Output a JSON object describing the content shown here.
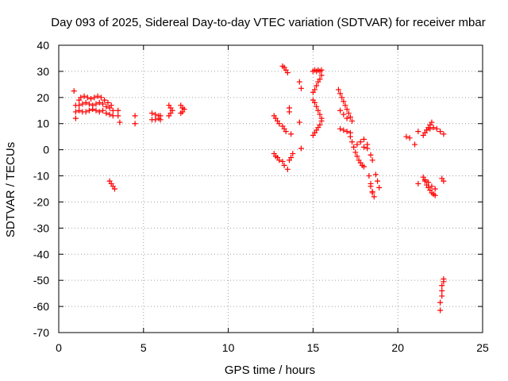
{
  "chart_data": {
    "type": "scatter",
    "title": "Day 093 of 2025, Sidereal Day-to-day VTEC variation (SDTVAR) for receiver mbar",
    "xlabel": "GPS time / hours",
    "ylabel": "SDTVAR / TECUs",
    "xlim": [
      0,
      25
    ],
    "ylim": [
      -70,
      40
    ],
    "xticks": [
      0,
      5,
      10,
      15,
      20,
      25
    ],
    "yticks": [
      -70,
      -60,
      -50,
      -40,
      -30,
      -20,
      -10,
      0,
      10,
      20,
      30,
      40
    ],
    "grid": true,
    "marker": "+",
    "color": "#ff0000",
    "series": [
      {
        "name": "",
        "segments": [
          {
            "x": [
              0.9,
              1.0,
              1.0,
              1.0
            ],
            "y": [
              22.5,
              17.0,
              14.5,
              12.0
            ]
          },
          {
            "x": [
              1.2,
              1.3,
              1.5,
              1.7,
              1.9,
              2.1,
              2.3,
              2.5,
              2.7,
              2.9,
              3.1
            ],
            "y": [
              19.0,
              20.0,
              20.5,
              20.0,
              19.5,
              20.0,
              20.5,
              20.0,
              19.0,
              18.0,
              17.0
            ]
          },
          {
            "x": [
              1.2,
              1.4,
              1.6,
              1.8,
              2.0,
              2.2,
              2.4,
              2.6,
              2.8,
              3.0,
              3.2
            ],
            "y": [
              17.0,
              17.5,
              18.0,
              17.5,
              17.0,
              17.5,
              18.0,
              17.5,
              16.5,
              16.0,
              15.0
            ]
          },
          {
            "x": [
              1.2,
              1.4,
              1.6,
              1.8,
              2.0,
              2.2,
              2.4,
              2.6,
              2.8,
              3.0,
              3.2
            ],
            "y": [
              15.0,
              14.5,
              14.5,
              15.0,
              15.5,
              15.0,
              14.5,
              15.0,
              14.0,
              13.5,
              13.0
            ]
          },
          {
            "x": [
              3.5,
              3.5,
              3.6
            ],
            "y": [
              15.0,
              13.0,
              10.5
            ]
          },
          {
            "x": [
              3.0,
              3.1,
              3.2,
              3.3
            ],
            "y": [
              -12.0,
              -13.0,
              -14.0,
              -15.0
            ]
          },
          {
            "x": [
              4.5,
              4.5
            ],
            "y": [
              13.0,
              10.0
            ]
          },
          {
            "x": [
              5.5,
              5.7,
              5.9,
              6.0,
              5.5,
              5.7,
              5.9,
              6.0
            ],
            "y": [
              14.0,
              13.5,
              13.0,
              13.0,
              11.5,
              11.5,
              12.0,
              11.5
            ]
          },
          {
            "x": [
              6.5,
              6.6,
              6.7,
              6.6,
              6.5
            ],
            "y": [
              17.0,
              16.0,
              15.0,
              14.0,
              13.0
            ]
          },
          {
            "x": [
              7.2,
              7.3,
              7.4,
              7.3,
              7.2
            ],
            "y": [
              17.0,
              16.0,
              15.5,
              14.5,
              14.0
            ]
          },
          {
            "x": [
              12.7,
              12.8,
              12.9,
              13.0
            ],
            "y": [
              13.0,
              12.0,
              11.0,
              10.0
            ]
          },
          {
            "x": [
              12.7,
              12.8,
              12.9,
              13.0
            ],
            "y": [
              -1.5,
              -2.5,
              -3.0,
              -4.0
            ]
          },
          {
            "x": [
              13.2,
              13.3,
              13.4,
              13.5
            ],
            "y": [
              32.0,
              31.5,
              30.5,
              29.5
            ]
          },
          {
            "x": [
              13.2,
              13.3,
              13.4
            ],
            "y": [
              9.0,
              8.0,
              7.0
            ]
          },
          {
            "x": [
              13.2,
              13.3,
              13.5,
              13.6
            ],
            "y": [
              -4.5,
              -6.0,
              -7.5,
              -4.0
            ]
          },
          {
            "x": [
              13.6,
              13.6,
              13.7
            ],
            "y": [
              16.0,
              14.5,
              6.0
            ]
          },
          {
            "x": [
              13.8,
              13.7
            ],
            "y": [
              -1.5,
              -3.0
            ]
          },
          {
            "x": [
              14.2,
              14.3,
              14.2,
              14.3
            ],
            "y": [
              26.0,
              23.5,
              10.5,
              0.5
            ]
          },
          {
            "x": [
              15.0,
              15.1,
              15.2,
              15.3,
              15.4,
              15.5
            ],
            "y": [
              30.0,
              30.5,
              30.0,
              30.5,
              30.0,
              30.5
            ]
          },
          {
            "x": [
              15.0,
              15.1,
              15.2,
              15.3,
              15.4,
              15.5
            ],
            "y": [
              22.0,
              23.0,
              24.5,
              26.0,
              27.0,
              28.5
            ]
          },
          {
            "x": [
              15.0,
              15.1,
              15.2,
              15.3,
              15.4,
              15.5
            ],
            "y": [
              19.0,
              18.0,
              16.5,
              15.0,
              13.5,
              12.0
            ]
          },
          {
            "x": [
              15.0,
              15.1,
              15.2,
              15.3,
              15.4,
              15.5
            ],
            "y": [
              5.5,
              6.5,
              7.5,
              8.5,
              9.5,
              11.0
            ]
          },
          {
            "x": [
              16.5,
              16.6,
              16.7,
              16.8,
              16.9,
              17.0,
              17.1,
              17.2,
              17.3
            ],
            "y": [
              23.0,
              21.5,
              20.0,
              18.5,
              17.0,
              15.5,
              14.0,
              12.5,
              11.0
            ]
          },
          {
            "x": [
              16.6,
              16.8,
              17.0
            ],
            "y": [
              15.0,
              13.5,
              12.0
            ]
          },
          {
            "x": [
              16.6,
              16.8,
              17.0,
              17.2
            ],
            "y": [
              8.0,
              7.5,
              7.0,
              6.5
            ]
          },
          {
            "x": [
              17.2,
              17.3,
              17.4,
              17.5,
              17.6,
              17.7,
              17.8,
              17.9,
              18.0
            ],
            "y": [
              5.0,
              3.0,
              1.0,
              -1.0,
              -2.5,
              -4.0,
              -5.0,
              -6.0,
              -6.5
            ]
          },
          {
            "x": [
              17.6,
              17.8,
              18.0,
              18.2
            ],
            "y": [
              2.0,
              3.0,
              4.0,
              2.0
            ]
          },
          {
            "x": [
              18.0,
              18.2,
              18.4,
              18.5
            ],
            "y": [
              1.0,
              0.5,
              -2.0,
              -4.0
            ]
          },
          {
            "x": [
              18.3,
              18.4,
              18.5
            ],
            "y": [
              -10.0,
              -13.0,
              -16.0
            ]
          },
          {
            "x": [
              18.4,
              18.5,
              18.6
            ],
            "y": [
              -14.0,
              -16.5,
              -18.0
            ]
          },
          {
            "x": [
              18.7,
              18.8,
              18.9
            ],
            "y": [
              -9.5,
              -12.0,
              -14.5
            ]
          },
          {
            "x": [
              20.5,
              20.7
            ],
            "y": [
              5.0,
              4.5
            ]
          },
          {
            "x": [
              21.0,
              21.2
            ],
            "y": [
              2.0,
              7.0
            ]
          },
          {
            "x": [
              21.2
            ],
            "y": [
              -13.0
            ]
          },
          {
            "x": [
              21.5,
              21.6,
              21.7,
              21.8,
              21.9,
              22.0
            ],
            "y": [
              5.5,
              6.5,
              7.5,
              8.5,
              9.5,
              10.5
            ]
          },
          {
            "x": [
              21.7,
              21.9,
              22.1,
              22.3,
              22.5,
              22.7
            ],
            "y": [
              7.5,
              8.0,
              8.5,
              8.0,
              7.0,
              6.0
            ]
          },
          {
            "x": [
              21.5,
              21.6,
              21.7,
              21.8,
              21.9,
              22.0,
              22.1,
              22.2
            ],
            "y": [
              -10.5,
              -12.0,
              -13.5,
              -14.5,
              -15.5,
              -16.5,
              -17.0,
              -17.5
            ]
          },
          {
            "x": [
              21.6,
              21.8,
              22.0,
              22.2
            ],
            "y": [
              -11.5,
              -12.5,
              -14.0,
              -15.0
            ]
          },
          {
            "x": [
              22.6,
              22.7
            ],
            "y": [
              -11.0,
              -12.0
            ]
          },
          {
            "x": [
              22.5,
              22.5,
              22.6,
              22.6,
              22.6,
              22.7,
              22.7
            ],
            "y": [
              -61.5,
              -58.5,
              -56.0,
              -54.0,
              -52.0,
              -50.5,
              -49.5
            ]
          }
        ]
      }
    ]
  }
}
